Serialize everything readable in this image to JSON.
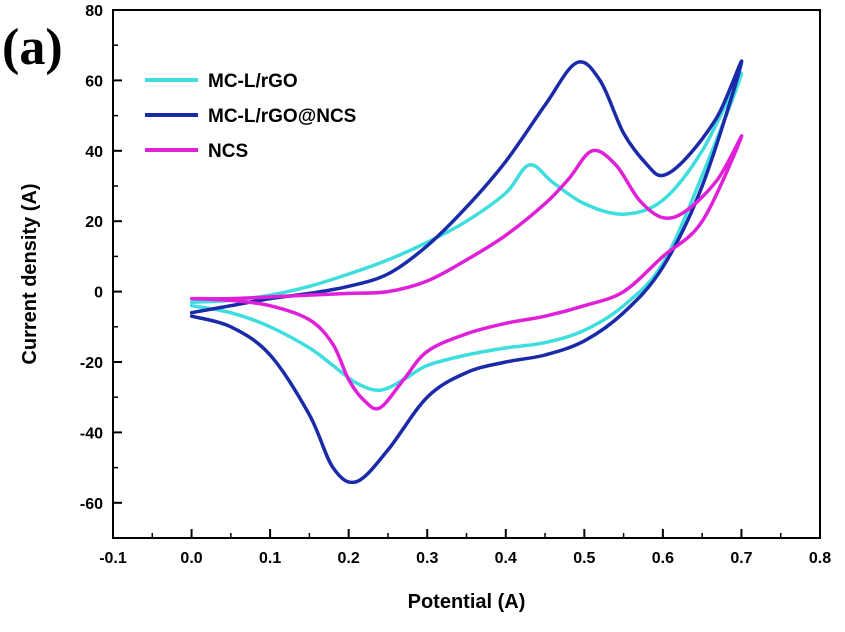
{
  "panel_label": "(a)",
  "chart_data": {
    "type": "line",
    "title": "",
    "xlabel": "Potential (A)",
    "ylabel": "Current density (A)",
    "xlim": [
      -0.1,
      0.8
    ],
    "ylim": [
      -70,
      80
    ],
    "xticks": [
      "-0.1",
      "0.0",
      "0.1",
      "0.2",
      "0.3",
      "0.4",
      "0.5",
      "0.6",
      "0.7",
      "0.8"
    ],
    "yticks": [
      "-60",
      "-40",
      "-20",
      "0",
      "20",
      "40",
      "60",
      "80"
    ],
    "grid": false,
    "legend_position": "top-left",
    "series": [
      {
        "name": "MC-L/rGO",
        "color": "#3fdede",
        "points": [
          [
            0.0,
            -3
          ],
          [
            0.05,
            -2.5
          ],
          [
            0.1,
            -1
          ],
          [
            0.15,
            1.5
          ],
          [
            0.2,
            5
          ],
          [
            0.25,
            9
          ],
          [
            0.3,
            14
          ],
          [
            0.35,
            20
          ],
          [
            0.4,
            28
          ],
          [
            0.43,
            36
          ],
          [
            0.46,
            31
          ],
          [
            0.5,
            25
          ],
          [
            0.55,
            22
          ],
          [
            0.6,
            26
          ],
          [
            0.65,
            40
          ],
          [
            0.7,
            62
          ],
          [
            0.65,
            33
          ],
          [
            0.6,
            8
          ],
          [
            0.55,
            -4
          ],
          [
            0.5,
            -11
          ],
          [
            0.45,
            -14.5
          ],
          [
            0.4,
            -16
          ],
          [
            0.35,
            -18
          ],
          [
            0.3,
            -21
          ],
          [
            0.27,
            -25
          ],
          [
            0.24,
            -28
          ],
          [
            0.21,
            -26
          ],
          [
            0.18,
            -21
          ],
          [
            0.15,
            -16
          ],
          [
            0.1,
            -10
          ],
          [
            0.05,
            -6
          ],
          [
            0.0,
            -4
          ]
        ]
      },
      {
        "name": "MC-L/rGO@NCS",
        "color": "#1a2aa8",
        "points": [
          [
            0.0,
            -6
          ],
          [
            0.05,
            -4
          ],
          [
            0.1,
            -2
          ],
          [
            0.15,
            -0.5
          ],
          [
            0.2,
            1.5
          ],
          [
            0.25,
            5
          ],
          [
            0.3,
            13
          ],
          [
            0.35,
            24
          ],
          [
            0.4,
            37
          ],
          [
            0.45,
            53
          ],
          [
            0.49,
            65
          ],
          [
            0.52,
            60
          ],
          [
            0.55,
            45
          ],
          [
            0.58,
            36
          ],
          [
            0.6,
            33
          ],
          [
            0.63,
            38
          ],
          [
            0.67,
            50
          ],
          [
            0.7,
            65
          ],
          [
            0.65,
            30
          ],
          [
            0.6,
            7
          ],
          [
            0.55,
            -6
          ],
          [
            0.5,
            -14
          ],
          [
            0.45,
            -18
          ],
          [
            0.4,
            -20
          ],
          [
            0.35,
            -23
          ],
          [
            0.3,
            -30
          ],
          [
            0.25,
            -45
          ],
          [
            0.21,
            -54
          ],
          [
            0.18,
            -50
          ],
          [
            0.15,
            -35
          ],
          [
            0.1,
            -18
          ],
          [
            0.05,
            -10
          ],
          [
            0.0,
            -7
          ]
        ]
      },
      {
        "name": "NCS",
        "color": "#e020d8",
        "points": [
          [
            0.0,
            -2
          ],
          [
            0.05,
            -2
          ],
          [
            0.1,
            -1.5
          ],
          [
            0.15,
            -1
          ],
          [
            0.2,
            -0.5
          ],
          [
            0.25,
            0
          ],
          [
            0.3,
            3
          ],
          [
            0.35,
            9
          ],
          [
            0.4,
            16
          ],
          [
            0.45,
            25
          ],
          [
            0.48,
            32
          ],
          [
            0.51,
            40
          ],
          [
            0.54,
            36
          ],
          [
            0.57,
            26
          ],
          [
            0.6,
            21
          ],
          [
            0.63,
            23
          ],
          [
            0.67,
            32
          ],
          [
            0.7,
            44
          ],
          [
            0.65,
            20
          ],
          [
            0.6,
            10
          ],
          [
            0.55,
            0
          ],
          [
            0.5,
            -4
          ],
          [
            0.45,
            -7
          ],
          [
            0.4,
            -9
          ],
          [
            0.35,
            -12
          ],
          [
            0.3,
            -17
          ],
          [
            0.27,
            -25
          ],
          [
            0.24,
            -33
          ],
          [
            0.22,
            -31
          ],
          [
            0.2,
            -25
          ],
          [
            0.18,
            -15
          ],
          [
            0.15,
            -8
          ],
          [
            0.1,
            -4
          ],
          [
            0.05,
            -2.5
          ],
          [
            0.0,
            -2
          ]
        ]
      }
    ]
  }
}
